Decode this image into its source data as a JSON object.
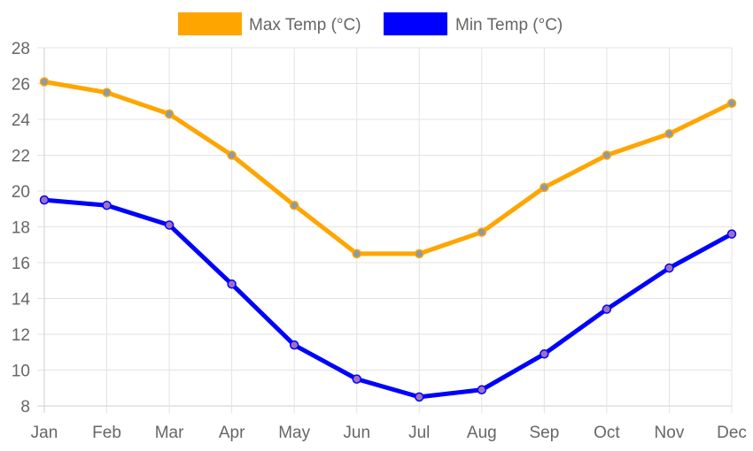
{
  "chart_data": {
    "type": "line",
    "title": "",
    "xlabel": "",
    "ylabel": "",
    "categories": [
      "Jan",
      "Feb",
      "Mar",
      "Apr",
      "May",
      "Jun",
      "Jul",
      "Aug",
      "Sep",
      "Oct",
      "Nov",
      "Dec"
    ],
    "ylim": [
      8,
      28
    ],
    "yticks": [
      8,
      10,
      12,
      14,
      16,
      18,
      20,
      22,
      24,
      26,
      28
    ],
    "grid": true,
    "legend_position": "top-center",
    "series": [
      {
        "name": "Max Temp (°C)",
        "color": "#FFA500",
        "point_color": "#8f9ba0",
        "values": [
          26.1,
          25.5,
          24.3,
          22.0,
          19.2,
          16.5,
          16.5,
          17.7,
          20.2,
          22.0,
          23.2,
          24.9
        ]
      },
      {
        "name": "Min Temp (°C)",
        "color": "#0000FF",
        "point_color": "#a070c0",
        "values": [
          19.5,
          19.2,
          18.1,
          14.8,
          11.4,
          9.5,
          8.5,
          8.9,
          10.9,
          13.4,
          15.7,
          17.6
        ]
      }
    ]
  }
}
